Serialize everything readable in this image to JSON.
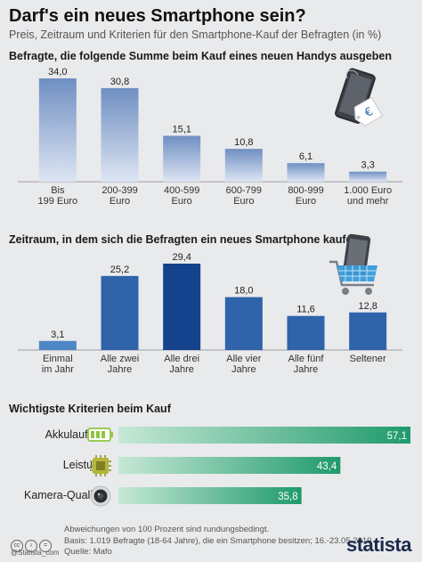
{
  "header": {
    "title": "Darf's ein neues Smartphone sein?",
    "subtitle": "Preis, Zeitraum und Kriterien für den Smartphone-Kauf der Befragten (in %)"
  },
  "chart_data": [
    {
      "type": "bar",
      "title": "Befragte, die folgende Summe beim Kauf eines neuen Handys ausgeben",
      "categories": [
        [
          "Bis",
          "199 Euro"
        ],
        [
          "200-399",
          "Euro"
        ],
        [
          "400-599",
          "Euro"
        ],
        [
          "600-799",
          "Euro"
        ],
        [
          "800-999",
          "Euro"
        ],
        [
          "1.000 Euro",
          "und mehr"
        ]
      ],
      "values": [
        34.0,
        30.8,
        15.1,
        10.8,
        6.1,
        3.3
      ],
      "value_labels": [
        "34,0",
        "30,8",
        "15,1",
        "10,8",
        "6,1",
        "3,3"
      ],
      "ylim": [
        0,
        34
      ],
      "colors": {
        "top": "#6f8fc2",
        "bottom": "#e3eaf5"
      }
    },
    {
      "type": "bar",
      "title": "Zeitraum, in dem sich die Befragten ein neues Smartphone kaufen",
      "categories": [
        [
          "Einmal",
          "im Jahr"
        ],
        [
          "Alle zwei",
          "Jahre"
        ],
        [
          "Alle drei",
          "Jahre"
        ],
        [
          "Alle vier",
          "Jahre"
        ],
        [
          "Alle fünf",
          "Jahre"
        ],
        [
          "Seltener"
        ]
      ],
      "values": [
        3.1,
        25.2,
        29.4,
        18.0,
        11.6,
        12.8
      ],
      "value_labels": [
        "3,1",
        "25,2",
        "29,4",
        "18,0",
        "11,6",
        "12,8"
      ],
      "ylim": [
        0,
        29.4
      ],
      "colors": {
        "highlight": "#14428c",
        "normal": "#2f63aa",
        "light": "#4f86c6"
      }
    },
    {
      "type": "bar",
      "orientation": "horizontal",
      "title": "Wichtigste Kriterien beim Kauf",
      "categories": [
        "Akkulaufzeit",
        "Leistung",
        "Kamera-Qualität"
      ],
      "values": [
        57.1,
        43.4,
        35.8
      ],
      "value_labels": [
        "57,1",
        "43,4",
        "35,8"
      ],
      "xlim": [
        0,
        57.1
      ],
      "colors": {
        "start": "#c6e8d6",
        "end": "#1f9a6c"
      }
    }
  ],
  "icons": [
    "phone-price-tag-icon",
    "shopping-cart-phone-icon",
    "battery-icon",
    "processor-chip-icon",
    "camera-lens-icon",
    "creative-commons-icon",
    "statista-logo"
  ],
  "footer": {
    "note": "Abweichungen von 100 Prozent sind rundungsbedingt.",
    "basis": "Basis: 1.019 Befragte (18-64 Jahre), die ein Smartphone besitzen; 16.-23.05.2019",
    "source": "Quelle: Mafo",
    "credit": "@Statista_com",
    "cc": [
      "cc",
      "i",
      "="
    ],
    "brand": "statista"
  }
}
